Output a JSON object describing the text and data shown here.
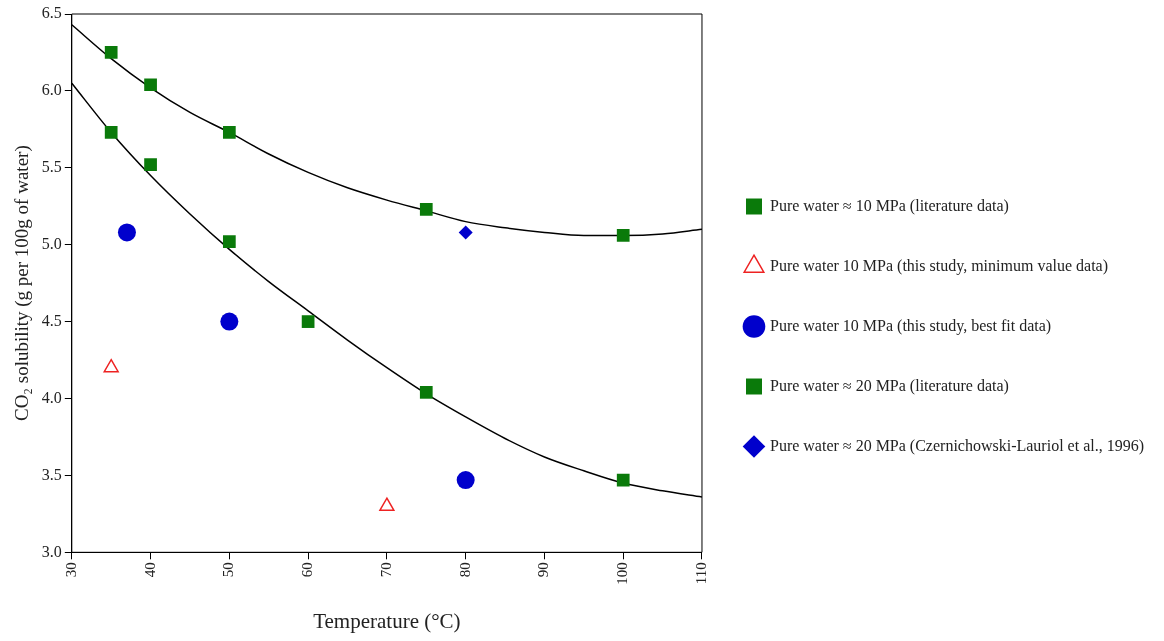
{
  "chart_data": {
    "type": "scatter",
    "xlabel": "Temperature (°C)",
    "ylabel": "CO₂ solubility (g per 100g of water)",
    "xlim": [
      30,
      110
    ],
    "xticks": [
      30,
      40,
      50,
      60,
      70,
      80,
      90,
      100,
      110
    ],
    "ylim": [
      3.0,
      6.5
    ],
    "yticks": [
      {
        "value": 3.0,
        "label": "3.0"
      },
      {
        "value": 3.5,
        "label": "3.5"
      },
      {
        "value": 4.0,
        "label": "4.0"
      },
      {
        "value": 4.5,
        "label": "4.5"
      },
      {
        "value": 5.0,
        "label": "5.0"
      },
      {
        "value": 5.5,
        "label": "5.5"
      },
      {
        "value": 6.0,
        "label": "6.0"
      },
      {
        "value": 6.5,
        "label": "6.5"
      }
    ],
    "grid": false,
    "legend": "right",
    "series": [
      {
        "name": "Pure water ≈ 10 MPa (literature data)",
        "color": "#0a7a0a",
        "marker": "square",
        "x": [
          35,
          40,
          50,
          60,
          75,
          100
        ],
        "values": [
          5.73,
          5.52,
          5.02,
          4.5,
          4.04,
          3.47
        ]
      },
      {
        "name": "Pure water 10 MPa (this study, minimum value data)",
        "color": "#ee2222",
        "marker": "triangle",
        "x": [
          35,
          70
        ],
        "values": [
          4.2,
          3.3
        ]
      },
      {
        "name": "Pure water 10 MPa (this study, best fit data)",
        "color": "#0000cc",
        "marker": "circle",
        "x": [
          37,
          50,
          80
        ],
        "values": [
          5.08,
          4.5,
          3.47
        ]
      },
      {
        "name": "Pure water ≈ 20 MPa (literature data)",
        "color": "#0a7a0a",
        "marker": "square",
        "x": [
          35,
          40,
          50,
          75,
          100
        ],
        "values": [
          6.25,
          6.04,
          5.73,
          5.23,
          5.06
        ]
      },
      {
        "name": "Pure water ≈ 20 MPa (Czernichowski-Lauriol et al., 1996)",
        "color": "#0000cc",
        "marker": "diamond",
        "x": [
          80
        ],
        "values": [
          5.08
        ]
      },
      {
        "type": "line",
        "color": "#000000",
        "marker": "none",
        "x": [
          30,
          35,
          40,
          45,
          50,
          55,
          60,
          65,
          70,
          75,
          80,
          85,
          90,
          95,
          100,
          105,
          110
        ],
        "values": [
          6.05,
          5.73,
          5.45,
          5.2,
          4.97,
          4.76,
          4.57,
          4.38,
          4.2,
          4.03,
          3.88,
          3.74,
          3.62,
          3.53,
          3.45,
          3.4,
          3.36
        ]
      },
      {
        "type": "line",
        "color": "#000000",
        "marker": "none",
        "x": [
          30,
          35,
          40,
          45,
          50,
          55,
          60,
          65,
          70,
          75,
          80,
          85,
          90,
          95,
          100,
          105,
          110
        ],
        "values": [
          6.43,
          6.21,
          6.02,
          5.86,
          5.73,
          5.59,
          5.47,
          5.37,
          5.29,
          5.22,
          5.15,
          5.11,
          5.08,
          5.06,
          5.06,
          5.07,
          5.1
        ]
      }
    ]
  }
}
